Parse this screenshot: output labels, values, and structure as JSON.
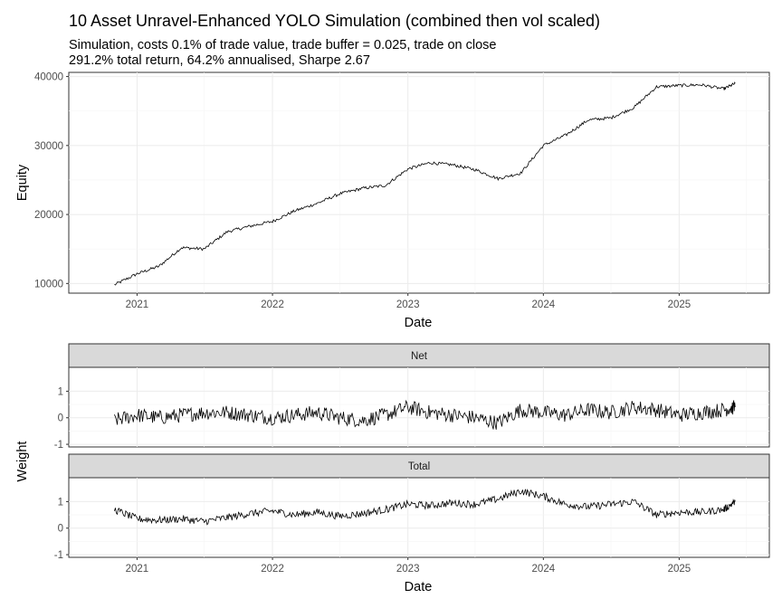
{
  "header": {
    "title": "10 Asset Unravel-Enhanced YOLO Simulation (combined then vol scaled)",
    "subtitle_line1": "Simulation, costs 0.1% of trade value, trade buffer = 0.025, trade on close",
    "subtitle_line2": "291.2% total return, 64.2% annualised, Sharpe 2.67"
  },
  "chart_data": [
    {
      "type": "line",
      "id": "equity",
      "xlabel": "Date",
      "ylabel": "Equity",
      "xlim": [
        "2020-07-01",
        "2025-09-01"
      ],
      "ylim": [
        8600,
        40600
      ],
      "x_ticks": [
        "2021",
        "2022",
        "2023",
        "2024",
        "2025"
      ],
      "y_ticks": [
        "10000",
        "20000",
        "30000",
        "40000"
      ],
      "grid": true,
      "x": [
        "2020-11-01",
        "2021-01-01",
        "2021-03-01",
        "2021-05-01",
        "2021-07-01",
        "2021-09-01",
        "2021-11-01",
        "2022-01-01",
        "2022-03-01",
        "2022-05-01",
        "2022-07-01",
        "2022-09-01",
        "2022-11-01",
        "2023-01-01",
        "2023-03-01",
        "2023-05-01",
        "2023-07-01",
        "2023-09-01",
        "2023-11-01",
        "2024-01-01",
        "2024-03-01",
        "2024-05-01",
        "2024-07-01",
        "2024-09-01",
        "2024-11-01",
        "2025-01-01",
        "2025-03-01",
        "2025-05-01",
        "2025-06-01"
      ],
      "y": [
        9800,
        11400,
        12500,
        15200,
        15000,
        17500,
        18300,
        19000,
        20500,
        21600,
        23000,
        23800,
        24200,
        26600,
        27500,
        27200,
        26500,
        25200,
        26000,
        30000,
        31500,
        33700,
        34000,
        35500,
        38500,
        38700,
        38800,
        38200,
        39000
      ]
    },
    {
      "type": "line",
      "id": "weight-net",
      "panel": "Net",
      "ylabel": "Weight",
      "xlim": [
        "2020-07-01",
        "2025-09-01"
      ],
      "ylim": [
        -1.1,
        1.9
      ],
      "y_ticks": [
        "-1",
        "0",
        "1"
      ],
      "grid": true,
      "x": [
        "2020-11-01",
        "2021-01-01",
        "2021-03-01",
        "2021-05-01",
        "2021-07-01",
        "2021-09-01",
        "2021-11-01",
        "2022-01-01",
        "2022-03-01",
        "2022-05-01",
        "2022-07-01",
        "2022-09-01",
        "2022-11-01",
        "2023-01-01",
        "2023-03-01",
        "2023-05-01",
        "2023-07-01",
        "2023-09-01",
        "2023-11-01",
        "2024-01-01",
        "2024-03-01",
        "2024-05-01",
        "2024-07-01",
        "2024-09-01",
        "2024-11-01",
        "2025-01-01",
        "2025-03-01",
        "2025-05-01",
        "2025-06-01"
      ],
      "y": [
        -0.1,
        0.1,
        0.0,
        0.1,
        0.2,
        0.2,
        0.1,
        0.0,
        0.1,
        0.2,
        0.0,
        -0.1,
        0.1,
        0.4,
        0.2,
        0.1,
        0.0,
        -0.2,
        0.3,
        0.2,
        0.1,
        0.3,
        0.2,
        0.4,
        0.3,
        0.1,
        0.2,
        0.3,
        0.4
      ]
    },
    {
      "type": "line",
      "id": "weight-total",
      "panel": "Total",
      "xlabel": "Date",
      "ylabel": "Weight",
      "xlim": [
        "2020-07-01",
        "2025-09-01"
      ],
      "ylim": [
        -1.1,
        1.9
      ],
      "x_ticks": [
        "2021",
        "2022",
        "2023",
        "2024",
        "2025"
      ],
      "y_ticks": [
        "-1",
        "0",
        "1"
      ],
      "grid": true,
      "x": [
        "2020-11-01",
        "2021-01-01",
        "2021-03-01",
        "2021-05-01",
        "2021-07-01",
        "2021-09-01",
        "2021-11-01",
        "2022-01-01",
        "2022-03-01",
        "2022-05-01",
        "2022-07-01",
        "2022-09-01",
        "2022-11-01",
        "2023-01-01",
        "2023-03-01",
        "2023-05-01",
        "2023-07-01",
        "2023-09-01",
        "2023-11-01",
        "2024-01-01",
        "2024-03-01",
        "2024-05-01",
        "2024-07-01",
        "2024-09-01",
        "2024-11-01",
        "2025-01-01",
        "2025-03-01",
        "2025-05-01",
        "2025-06-01"
      ],
      "y": [
        0.7,
        0.35,
        0.3,
        0.35,
        0.25,
        0.4,
        0.55,
        0.65,
        0.5,
        0.6,
        0.45,
        0.55,
        0.7,
        0.9,
        0.85,
        0.95,
        0.9,
        1.1,
        1.4,
        1.2,
        0.9,
        0.8,
        0.9,
        1.0,
        0.5,
        0.6,
        0.6,
        0.7,
        1.0
      ]
    }
  ]
}
